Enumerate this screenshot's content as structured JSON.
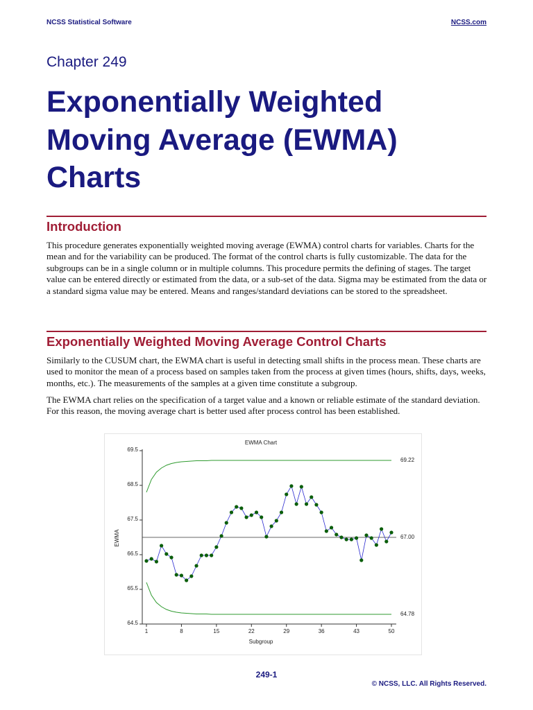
{
  "header": {
    "left": "NCSS Statistical Software",
    "right": "NCSS.com"
  },
  "chapter": "Chapter 249",
  "title_lines": [
    "Exponentially Weighted",
    "Moving Average (EWMA)",
    "Charts"
  ],
  "sections": [
    {
      "heading": "Introduction",
      "paragraphs": [
        "This procedure generates exponentially weighted moving average (EWMA) control charts for variables. Charts for the mean and for the variability can be produced. The format of the control charts is fully customizable. The data for the subgroups can be in a single column or in multiple columns. This procedure permits the defining of stages. The target value can be entered directly or estimated from the data, or a sub-set of the data. Sigma may be estimated from the data or a standard sigma value may be entered. Means and ranges/standard deviations can be stored to the spreadsheet."
      ]
    },
    {
      "heading": "Exponentially Weighted Moving Average Control Charts",
      "paragraphs": [
        "Similarly to the CUSUM chart, the EWMA chart is useful in detecting small shifts in the process mean. These charts are used to monitor the mean of a process based on samples taken from the process at given times (hours, shifts, days, weeks, months, etc.). The measurements of the samples at a given time constitute a subgroup.",
        "The EWMA chart relies on the specification of a target value and a known or reliable estimate of the standard deviation. For this reason, the moving average chart is better used after process control has been established."
      ]
    }
  ],
  "chart_data": {
    "type": "line",
    "title": "EWMA Chart",
    "xlabel": "Subgroup",
    "ylabel": "EWMA",
    "x": [
      1,
      2,
      3,
      4,
      5,
      6,
      7,
      8,
      9,
      10,
      11,
      12,
      13,
      14,
      15,
      16,
      17,
      18,
      19,
      20,
      21,
      22,
      23,
      24,
      25,
      26,
      27,
      28,
      29,
      30,
      31,
      32,
      33,
      34,
      35,
      36,
      37,
      38,
      39,
      40,
      41,
      42,
      43,
      44,
      45,
      46,
      47,
      48,
      49,
      50
    ],
    "xlim": [
      1,
      50
    ],
    "xticks": [
      1,
      8,
      15,
      22,
      29,
      36,
      43,
      50
    ],
    "ylim": [
      64.5,
      69.5
    ],
    "yticks": [
      64.5,
      65.5,
      66.5,
      67.5,
      68.5,
      69.5
    ],
    "series": [
      {
        "color": "#2a2ad0",
        "marker_color": "#0b5e0b",
        "values": [
          66.32,
          66.38,
          66.3,
          66.76,
          66.52,
          66.42,
          65.92,
          65.9,
          65.76,
          65.88,
          66.18,
          66.48,
          66.48,
          66.48,
          66.72,
          67.04,
          67.42,
          67.72,
          67.88,
          67.84,
          67.58,
          67.64,
          67.72,
          67.58,
          67.02,
          67.32,
          67.48,
          67.72,
          68.24,
          68.48,
          67.96,
          68.46,
          67.96,
          68.16,
          67.94,
          67.72,
          67.18,
          67.28,
          67.08,
          67.0,
          66.94,
          66.94,
          66.98,
          66.34,
          67.06,
          66.98,
          66.78,
          67.24,
          66.88,
          67.14
        ]
      },
      {
        "color": "#2e9a2e",
        "values": [
          68.3,
          68.67,
          68.88,
          69.0,
          69.08,
          69.13,
          69.16,
          69.18,
          69.19,
          69.2,
          69.21,
          69.21,
          69.21,
          69.22,
          69.22,
          69.22,
          69.22,
          69.22,
          69.22,
          69.22,
          69.22,
          69.22,
          69.22,
          69.22,
          69.22,
          69.22,
          69.22,
          69.22,
          69.22,
          69.22,
          69.22,
          69.22,
          69.22,
          69.22,
          69.22,
          69.22,
          69.22,
          69.22,
          69.22,
          69.22,
          69.22,
          69.22,
          69.22,
          69.22,
          69.22,
          69.22,
          69.22,
          69.22,
          69.22,
          69.22
        ]
      },
      {
        "color": "#2e9a2e",
        "values": [
          65.7,
          65.33,
          65.12,
          65.0,
          64.92,
          64.87,
          64.84,
          64.82,
          64.81,
          64.8,
          64.79,
          64.79,
          64.79,
          64.78,
          64.78,
          64.78,
          64.78,
          64.78,
          64.78,
          64.78,
          64.78,
          64.78,
          64.78,
          64.78,
          64.78,
          64.78,
          64.78,
          64.78,
          64.78,
          64.78,
          64.78,
          64.78,
          64.78,
          64.78,
          64.78,
          64.78,
          64.78,
          64.78,
          64.78,
          64.78,
          64.78,
          64.78,
          64.78,
          64.78,
          64.78,
          64.78,
          64.78,
          64.78,
          64.78,
          64.78
        ]
      }
    ],
    "center_line": {
      "value": 67,
      "label": "67.00"
    },
    "ucl_label": 69.22,
    "lcl_label": 64.78
  },
  "footer": {
    "page": "249-1",
    "copyright": "© NCSS, LLC. All Rights Reserved."
  }
}
